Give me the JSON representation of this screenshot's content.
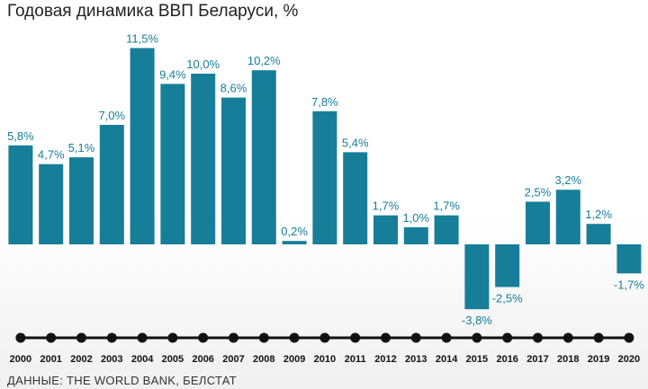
{
  "title": "Годовая динамика ВВП Беларуси, %",
  "source": "ДАННЫЕ: THE WORLD BANK, БЕЛСТАТ",
  "colors": {
    "bar": "#177E99",
    "label": "#177E99",
    "timeline": "#111111"
  },
  "chart_data": {
    "type": "bar",
    "title": "Годовая динамика ВВП Беларуси, %",
    "categories": [
      "2000",
      "2001",
      "2002",
      "2003",
      "2004",
      "2005",
      "2006",
      "2007",
      "2008",
      "2009",
      "2010",
      "2011",
      "2012",
      "2013",
      "2014",
      "2015",
      "2016",
      "2017",
      "2018",
      "2019",
      "2020"
    ],
    "values": [
      5.8,
      4.7,
      5.1,
      7.0,
      11.5,
      9.4,
      10.0,
      8.6,
      10.2,
      0.2,
      7.8,
      5.4,
      1.7,
      1.0,
      1.7,
      -3.8,
      -2.5,
      2.5,
      3.2,
      1.2,
      -1.7
    ],
    "labels": [
      "5,8%",
      "4,7%",
      "5,1%",
      "7,0%",
      "11,5%",
      "9,4%",
      "10,0%",
      "8,6%",
      "10,2%",
      "0,2%",
      "7,8%",
      "5,4%",
      "1,7%",
      "1,0%",
      "1,7%",
      "-3,8%",
      "-2,5%",
      "2,5%",
      "3,2%",
      "1,2%",
      "-1,7%"
    ],
    "ylim": [
      -3.8,
      11.5
    ],
    "grid": false,
    "legend": "none"
  }
}
